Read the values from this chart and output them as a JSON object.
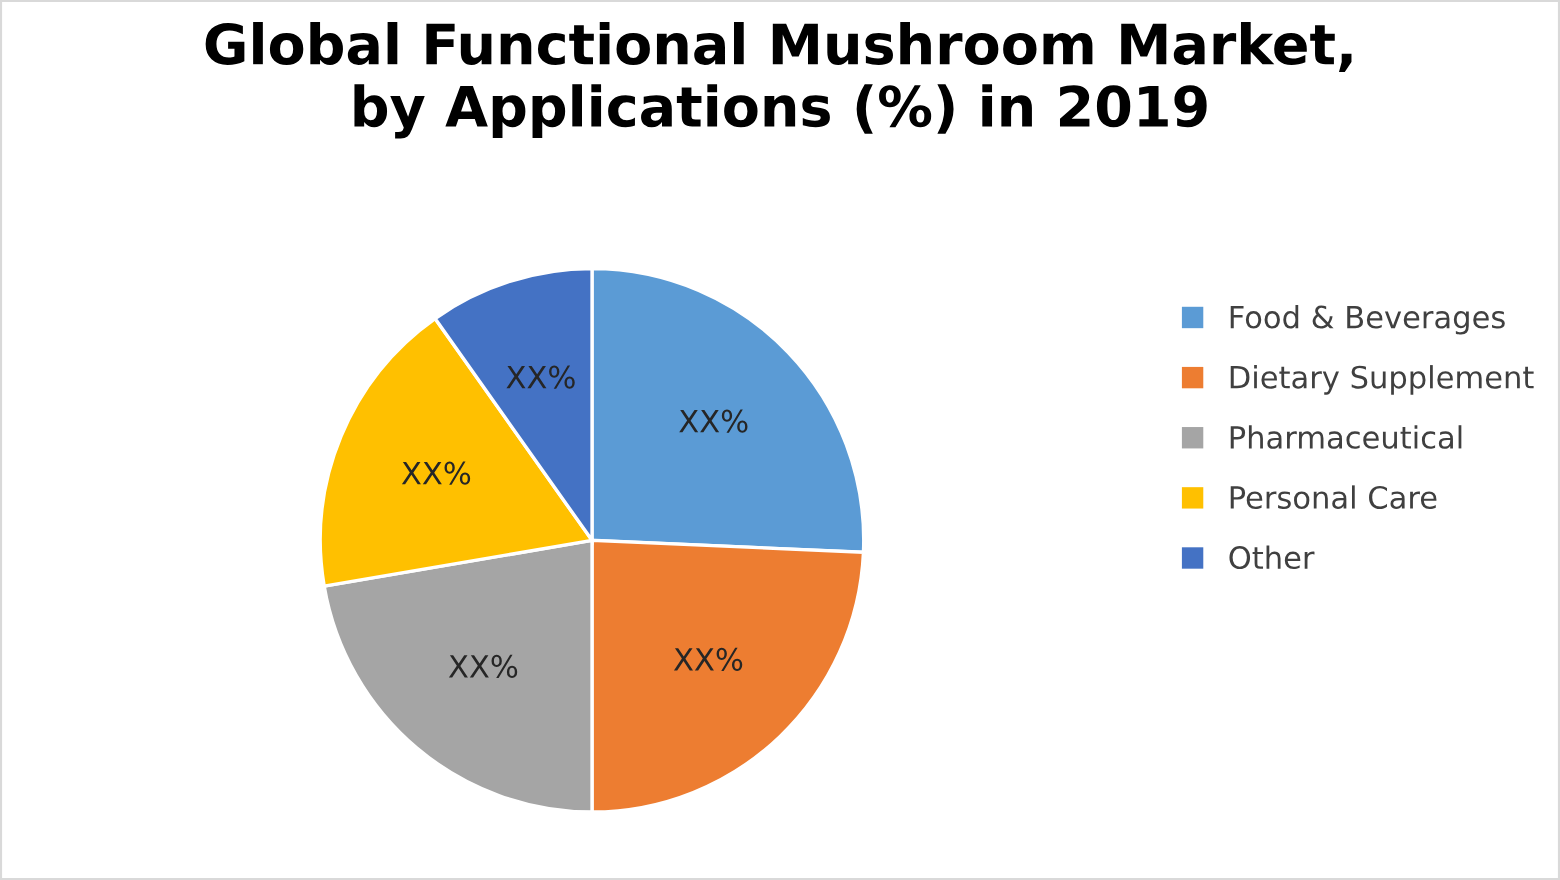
{
  "chart_data": {
    "type": "pie",
    "title": "Global Functional Mushroom Market,\nby Applications (%) in 2019",
    "categories": [
      "Food & Beverages",
      "Dietary Supplement",
      "Pharmaceutical",
      "Personal Care",
      "Other"
    ],
    "values": [
      25.7,
      24.3,
      22.3,
      17.9,
      9.8
    ],
    "colors": [
      "#5b9bd5",
      "#ed7d31",
      "#a5a5a5",
      "#ffc000",
      "#4472c4"
    ],
    "value_labels": [
      "XX%",
      "XX%",
      "XX%",
      "XX%",
      "XX%"
    ],
    "legend": "right"
  }
}
